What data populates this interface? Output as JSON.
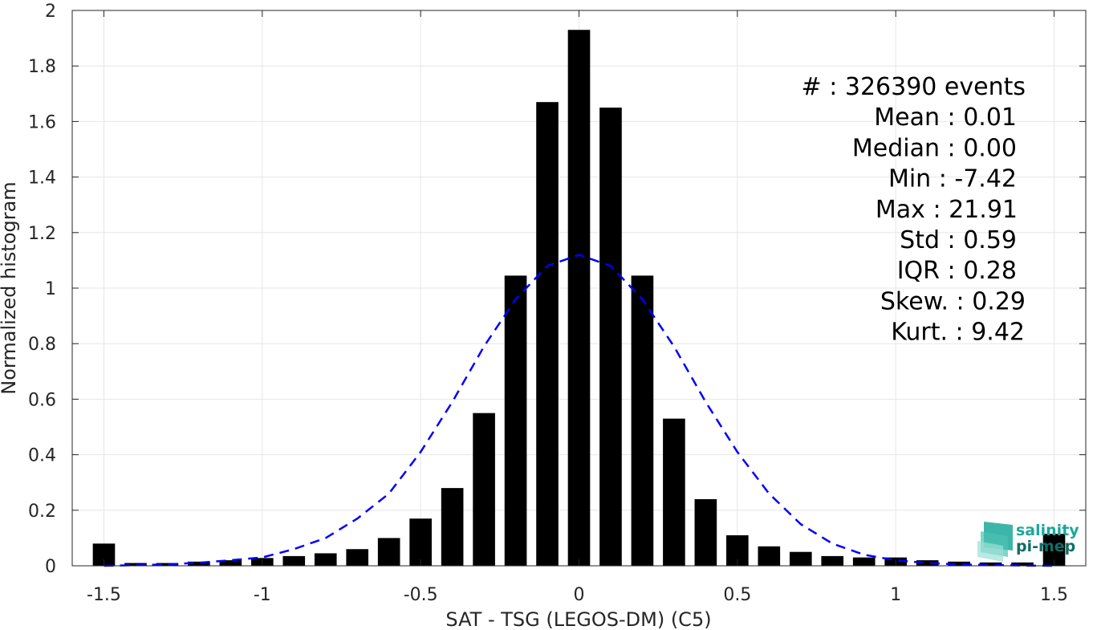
{
  "chart_data": {
    "type": "bar",
    "xlabel": "SAT - TSG (LEGOS-DM) (C5)",
    "ylabel": "Normalized histogram",
    "xlim": [
      -1.6,
      1.6
    ],
    "ylim": [
      0,
      2
    ],
    "xticks": [
      "-1.5",
      "-1",
      "-0.5",
      "0",
      "0.5",
      "1",
      "1.5"
    ],
    "xtick_values": [
      -1.5,
      -1,
      -0.5,
      0,
      0.5,
      1,
      1.5
    ],
    "yticks": [
      "0",
      "0.2",
      "0.4",
      "0.6",
      "0.8",
      "1",
      "1.2",
      "1.4",
      "1.6",
      "1.8",
      "2"
    ],
    "ytick_values": [
      0,
      0.2,
      0.4,
      0.6,
      0.8,
      1,
      1.2,
      1.4,
      1.6,
      1.8,
      2
    ],
    "grid": true,
    "bins": [
      -1.5,
      -1.4,
      -1.3,
      -1.2,
      -1.1,
      -1.0,
      -0.9,
      -0.8,
      -0.7,
      -0.6,
      -0.5,
      -0.4,
      -0.3,
      -0.2,
      -0.1,
      0.0,
      0.1,
      0.2,
      0.3,
      0.4,
      0.5,
      0.6,
      0.7,
      0.8,
      0.9,
      1.0,
      1.1,
      1.2,
      1.3,
      1.4,
      1.5
    ],
    "values": [
      0.08,
      0.01,
      0.01,
      0.015,
      0.02,
      0.028,
      0.035,
      0.045,
      0.06,
      0.1,
      0.17,
      0.28,
      0.55,
      1.045,
      1.67,
      1.93,
      1.65,
      1.045,
      0.53,
      0.24,
      0.11,
      0.07,
      0.05,
      0.035,
      0.03,
      0.03,
      0.02,
      0.015,
      0.012,
      0.012,
      0.115
    ],
    "bar_color": "#000000",
    "fit_curve": {
      "type": "gaussian",
      "mean": 0.0,
      "std": 0.355,
      "color": "#0000ff",
      "style": "dashed",
      "x": [
        -1.5,
        -1.4,
        -1.3,
        -1.2,
        -1.1,
        -1.0,
        -0.9,
        -0.8,
        -0.7,
        -0.6,
        -0.5,
        -0.4,
        -0.3,
        -0.2,
        -0.1,
        0.0,
        0.1,
        0.2,
        0.3,
        0.4,
        0.5,
        0.6,
        0.7,
        0.8,
        0.9,
        1.0,
        1.1,
        1.2,
        1.3,
        1.4,
        1.5
      ],
      "y": [
        0.0,
        0.002,
        0.005,
        0.011,
        0.02,
        0.03,
        0.06,
        0.1,
        0.17,
        0.26,
        0.41,
        0.59,
        0.79,
        0.96,
        1.08,
        1.12,
        1.08,
        0.96,
        0.79,
        0.59,
        0.41,
        0.26,
        0.15,
        0.08,
        0.04,
        0.02,
        0.01,
        0.005,
        0.003,
        0.001,
        0.0
      ]
    },
    "stats": [
      {
        "label": "#  : 326390 events"
      },
      {
        "label": "Mean : 0.01"
      },
      {
        "label": "Median : 0.00"
      },
      {
        "label": "Min : -7.42"
      },
      {
        "label": "Max : 21.91"
      },
      {
        "label": "Std : 0.59"
      },
      {
        "label": "IQR : 0.28"
      },
      {
        "label": "Skew. : 0.29"
      },
      {
        "label": "Kurt. : 9.42"
      }
    ]
  },
  "logo": {
    "line1": "salinity",
    "line2": "pi-mep",
    "color1": "#1ba89a",
    "color2": "#0e6e66"
  }
}
